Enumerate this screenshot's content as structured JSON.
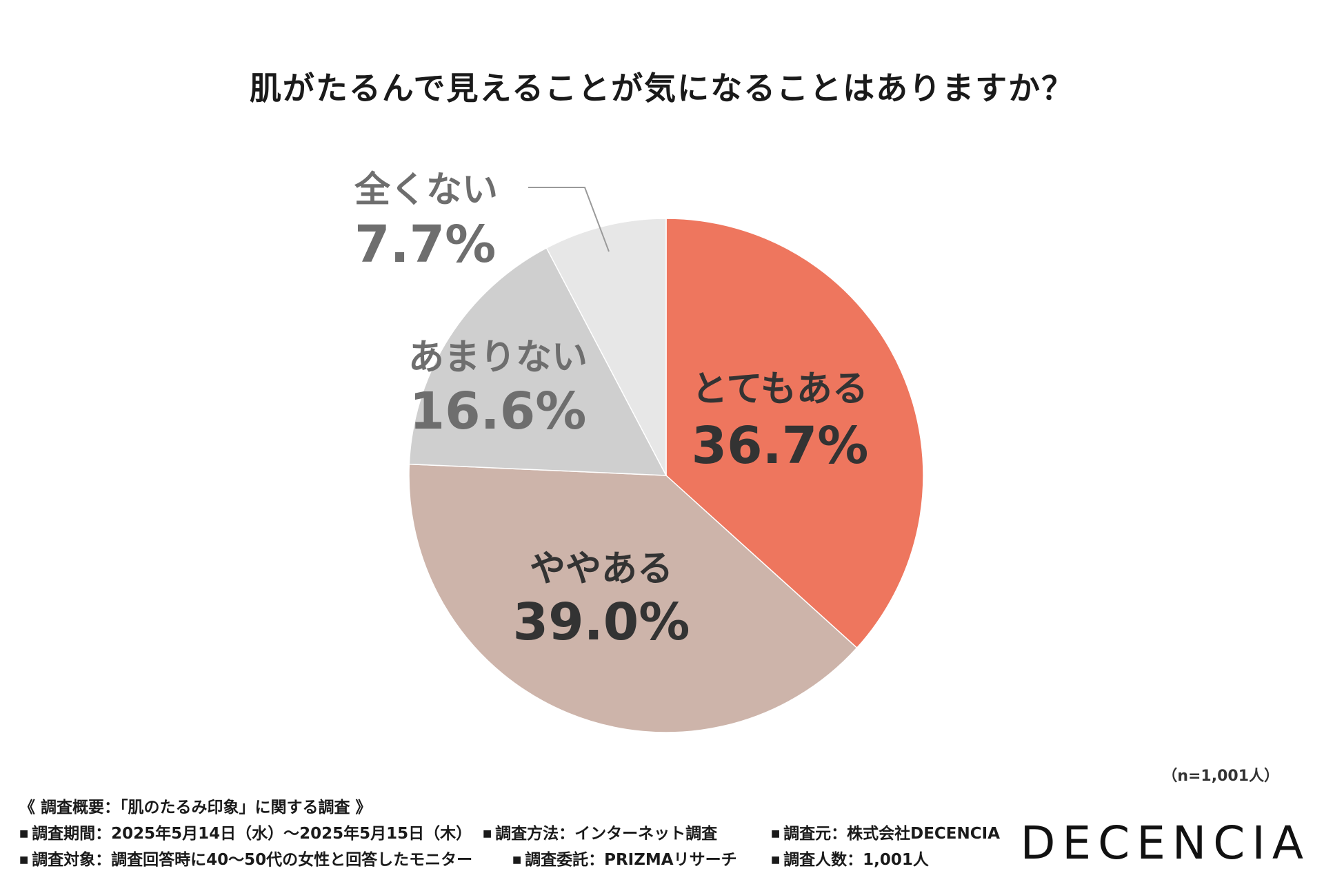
{
  "title": "肌がたるんで見えることが気になることはありますか？",
  "sample_size": "（n=1,001人）",
  "colors": {
    "slice_1": "#EE765E",
    "slice_2": "#CDB4AA",
    "slice_3": "#CFCFCF",
    "slice_4": "#E7E7E7",
    "label_dark": "#333333",
    "label_gray": "#6E6E6E"
  },
  "chart_data": {
    "type": "pie",
    "title": "肌がたるんで見えることが気になることはありますか？",
    "slices": [
      {
        "label": "とてもある",
        "value": 36.7,
        "value_label": "36.7%"
      },
      {
        "label": "ややある",
        "value": 39.0,
        "value_label": "39.0%"
      },
      {
        "label": "あまりない",
        "value": 16.6,
        "value_label": "16.6%"
      },
      {
        "label": "全くない",
        "value": 7.7,
        "value_label": "7.7%"
      }
    ],
    "start": "12 o'clock, clockwise"
  },
  "footer": {
    "summary": "《 調査概要：「肌のたるみ印象」に関する調査 》",
    "period": "調査期間：2025年5月14日（水）～2025年5月15日（木）",
    "method": "調査方法：インターネット調査",
    "source": "調査元：株式会社DECENCIA",
    "target": "調査対象：調査回答時に40～50代の女性と回答したモニター",
    "commission": "調査委託：PRIZMAリサーチ",
    "count": "調査人数：1,001人"
  },
  "brand": "DECENCIA"
}
